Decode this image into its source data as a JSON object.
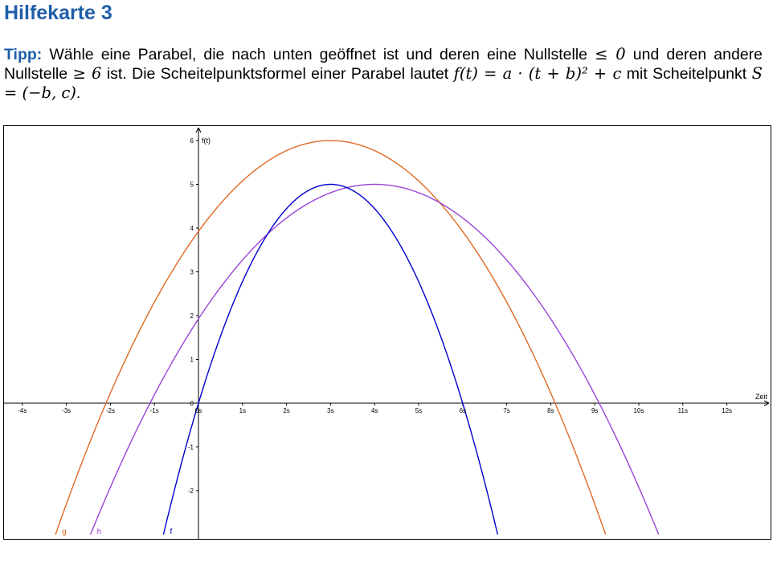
{
  "page": {
    "title": "Hilfekarte 3",
    "tip_label": "Tipp:",
    "tip_part1": "Wähle eine Parabel, die nach unten geöffnet ist und deren eine Nullstelle",
    "math_le_zero": "≤ 0",
    "tip_part2": "und deren andere Nullstelle",
    "math_ge_six": "≥ 6",
    "tip_part3": "ist. Die Scheitelpunktsformel einer Parabel lautet",
    "math_formula": "f(t) = a · (t + b)² + c",
    "tip_part4": "mit Scheitelpunkt",
    "math_vertex": "S = (−b, c)",
    "tip_end": "."
  },
  "chart_data": {
    "type": "line",
    "xlabel": "Zeit",
    "ylabel": "f(t)",
    "xlim": [
      -4.3,
      13.0
    ],
    "ylim": [
      -3.0,
      6.3
    ],
    "grid": false,
    "x_ticks": [
      {
        "value": -4,
        "label": "-4s"
      },
      {
        "value": -3,
        "label": "-3s"
      },
      {
        "value": -2,
        "label": "-2s"
      },
      {
        "value": -1,
        "label": "-1s"
      },
      {
        "value": 0,
        "label": "0s"
      },
      {
        "value": 1,
        "label": "1s"
      },
      {
        "value": 2,
        "label": "2s"
      },
      {
        "value": 3,
        "label": "3s"
      },
      {
        "value": 4,
        "label": "4s"
      },
      {
        "value": 5,
        "label": "5s"
      },
      {
        "value": 6,
        "label": "6s"
      },
      {
        "value": 7,
        "label": "7s"
      },
      {
        "value": 8,
        "label": "8s"
      },
      {
        "value": 9,
        "label": "9s"
      },
      {
        "value": 10,
        "label": "10s"
      },
      {
        "value": 11,
        "label": "11s"
      },
      {
        "value": 12,
        "label": "12s"
      }
    ],
    "y_ticks": [
      {
        "value": -2,
        "label": "-2"
      },
      {
        "value": -1,
        "label": "-1"
      },
      {
        "value": 0,
        "label": "0"
      },
      {
        "value": 1,
        "label": "1"
      },
      {
        "value": 2,
        "label": "2"
      },
      {
        "value": 3,
        "label": "3"
      },
      {
        "value": 4,
        "label": "4"
      },
      {
        "value": 5,
        "label": "5"
      },
      {
        "value": 6,
        "label": "6"
      }
    ],
    "series": [
      {
        "name": "g",
        "color": "#e06a24",
        "vertex": [
          3,
          6
        ],
        "roots": [
          -2.1,
          8.1
        ],
        "a": -0.2307
      },
      {
        "name": "h",
        "color": "#9b44d8",
        "vertex": [
          4,
          5
        ],
        "roots": [
          -1.1,
          9.1
        ],
        "a": -0.1922
      },
      {
        "name": "f",
        "color": "#0000cc",
        "vertex": [
          3,
          5
        ],
        "roots": [
          0,
          6
        ],
        "a": -0.5556
      }
    ]
  }
}
